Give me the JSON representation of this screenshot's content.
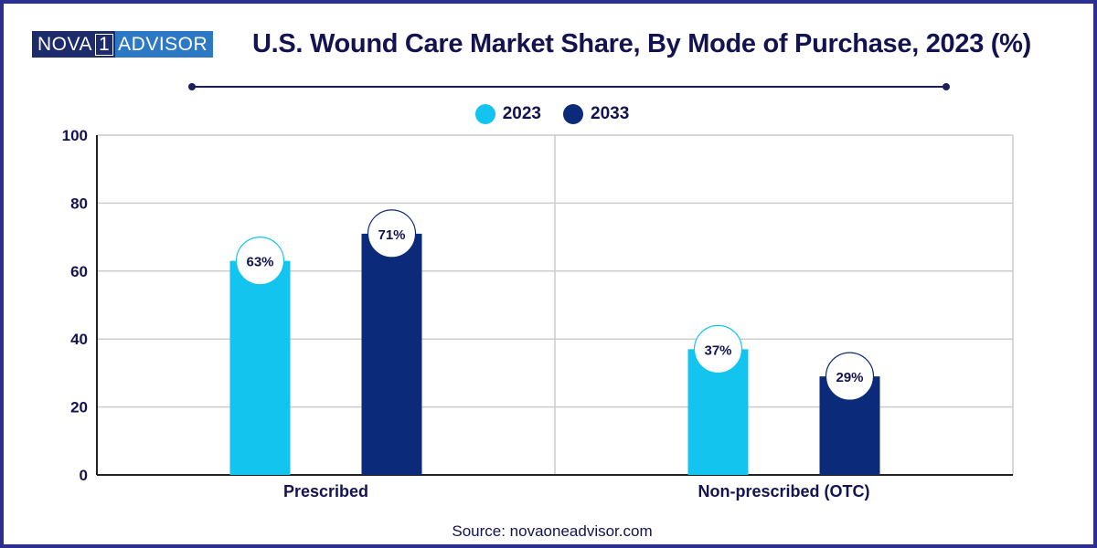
{
  "logo": {
    "part1": "NOVA",
    "part2": "1",
    "part3": "ADVISOR"
  },
  "colors": {
    "series_2023": "#13c4ef",
    "series_2033": "#0b2a7a",
    "text": "#13134f",
    "grid": "#cccccc",
    "frame": "#2b2e8c"
  },
  "source": "Source: novaoneadvisor.com",
  "chart_data": {
    "type": "bar",
    "title": "U.S. Wound Care Market Share, By Mode of Purchase, 2023 (%)",
    "xlabel": "",
    "ylabel": "",
    "categories": [
      "Prescribed",
      "Non-prescribed (OTC)"
    ],
    "series": [
      {
        "name": "2023",
        "values": [
          63,
          37
        ],
        "labels": [
          "63%",
          "37%"
        ]
      },
      {
        "name": "2033",
        "values": [
          71,
          29
        ],
        "labels": [
          "71%",
          "29%"
        ]
      }
    ],
    "ylim": [
      0,
      100
    ],
    "yticks": [
      0,
      20,
      40,
      60,
      80,
      100
    ],
    "grid": true,
    "legend": "top-center"
  }
}
